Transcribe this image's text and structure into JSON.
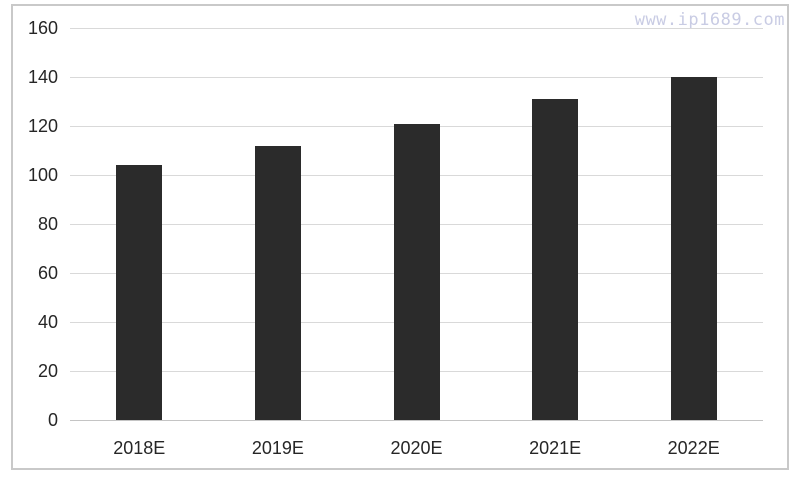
{
  "watermark": "www.ip1689.com",
  "colors": {
    "bar": "#2b2b2b",
    "gridline": "#d9d9d9",
    "axis_line": "#c4c4c4",
    "frame_border": "#c9c9c9",
    "tick_text": "#262626",
    "watermark_text": "#c9cce4",
    "background": "#ffffff"
  },
  "chart_data": {
    "type": "bar",
    "categories": [
      "2018E",
      "2019E",
      "2020E",
      "2021E",
      "2022E"
    ],
    "values": [
      104,
      112,
      121,
      131,
      140
    ],
    "title": "",
    "xlabel": "",
    "ylabel": "",
    "ylim": [
      0,
      160
    ],
    "ytick_step": 20,
    "ytick_labels": [
      "0",
      "20",
      "40",
      "60",
      "80",
      "100",
      "120",
      "140",
      "160"
    ],
    "grid": true,
    "legend": false,
    "bar_color": "#2b2b2b"
  }
}
